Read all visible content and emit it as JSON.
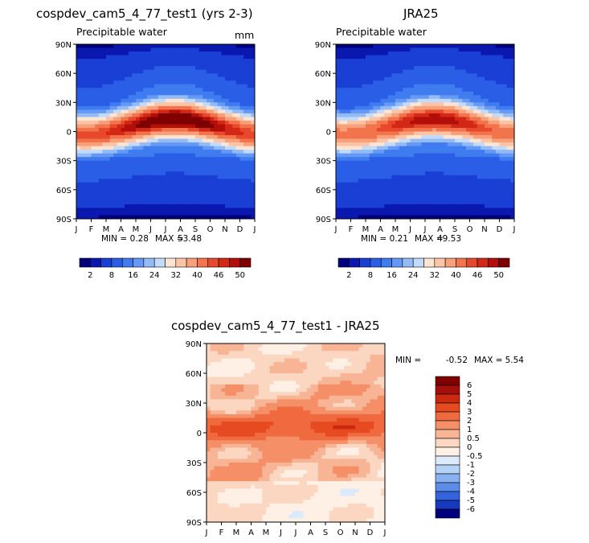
{
  "chart_data": [
    {
      "type": "heatmap",
      "title": "cospdev_cam5_4_77_test1 (yrs 2-3)",
      "subtitle": "Precipitable water",
      "units": "mm",
      "x_ticks": [
        "J",
        "F",
        "M",
        "A",
        "M",
        "J",
        "J",
        "A",
        "S",
        "O",
        "N",
        "D",
        "J"
      ],
      "y_ticks": [
        "90N",
        "60N",
        "30N",
        "0",
        "30S",
        "60S",
        "90S"
      ],
      "min_label": "MIN =",
      "min_value": "0.28",
      "max_label": "MAX =",
      "max_value": "53.48",
      "colorbar_labels": [
        "2",
        "8",
        "16",
        "24",
        "32",
        "40",
        "46",
        "50"
      ],
      "colorbar_levels": [
        2,
        4,
        8,
        12,
        16,
        20,
        24,
        28,
        32,
        36,
        40,
        44,
        46,
        48,
        50
      ],
      "colorbar_colors": [
        "#00007f",
        "#0a18b0",
        "#1a3fd4",
        "#2a5ee6",
        "#3f7cf0",
        "#6699f5",
        "#93bbf7",
        "#c3dbfa",
        "#fde4d3",
        "#fbc4a6",
        "#f7a07a",
        "#f2744d",
        "#e8482b",
        "#d42816",
        "#b30f0a",
        "#7f0000"
      ],
      "peak_mm": 53.48,
      "equator_shift_deg": 8
    },
    {
      "type": "heatmap",
      "title": "JRA25",
      "subtitle": "Precipitable water",
      "x_ticks": [
        "J",
        "F",
        "M",
        "A",
        "M",
        "J",
        "J",
        "A",
        "S",
        "O",
        "N",
        "D",
        "J"
      ],
      "y_ticks": [
        "90N",
        "60N",
        "30N",
        "0",
        "30S",
        "60S",
        "90S"
      ],
      "min_label": "MIN =",
      "min_value": "0.21",
      "max_label": "MAX =",
      "max_value": "49.53",
      "colorbar_labels": [
        "2",
        "8",
        "16",
        "24",
        "32",
        "40",
        "46",
        "50"
      ],
      "colorbar_levels": [
        2,
        4,
        8,
        12,
        16,
        20,
        24,
        28,
        32,
        36,
        40,
        44,
        46,
        48,
        50
      ],
      "colorbar_colors": [
        "#00007f",
        "#0a18b0",
        "#1a3fd4",
        "#2a5ee6",
        "#3f7cf0",
        "#6699f5",
        "#93bbf7",
        "#c3dbfa",
        "#fde4d3",
        "#fbc4a6",
        "#f7a07a",
        "#f2744d",
        "#e8482b",
        "#d42816",
        "#b30f0a",
        "#7f0000"
      ],
      "peak_mm": 49.53,
      "equator_shift_deg": 8
    },
    {
      "type": "heatmap",
      "title": "cospdev_cam5_4_77_test1 - JRA25",
      "x_ticks": [
        "J",
        "F",
        "M",
        "A",
        "M",
        "J",
        "J",
        "A",
        "S",
        "O",
        "N",
        "D",
        "J"
      ],
      "y_ticks": [
        "90N",
        "60N",
        "30N",
        "0",
        "30S",
        "60S",
        "90S"
      ],
      "min_label": "MIN =",
      "min_value": "-0.52",
      "max_label": "MAX =",
      "max_value": "5.54",
      "colorbar_labels": [
        "6",
        "5",
        "4",
        "3",
        "2",
        "1",
        "0.5",
        "0",
        "-0.5",
        "-1",
        "-2",
        "-3",
        "-4",
        "-5",
        "-6"
      ],
      "colorbar_colors": [
        "#7f0000",
        "#a50f0a",
        "#cc2a10",
        "#e64a20",
        "#f06a3f",
        "#f48f68",
        "#f8b596",
        "#fbd6c0",
        "#fef0e4",
        "#dcebfb",
        "#b5d3f7",
        "#89b1f1",
        "#5b8ce8",
        "#3563db",
        "#1639bd",
        "#00007f"
      ]
    }
  ]
}
